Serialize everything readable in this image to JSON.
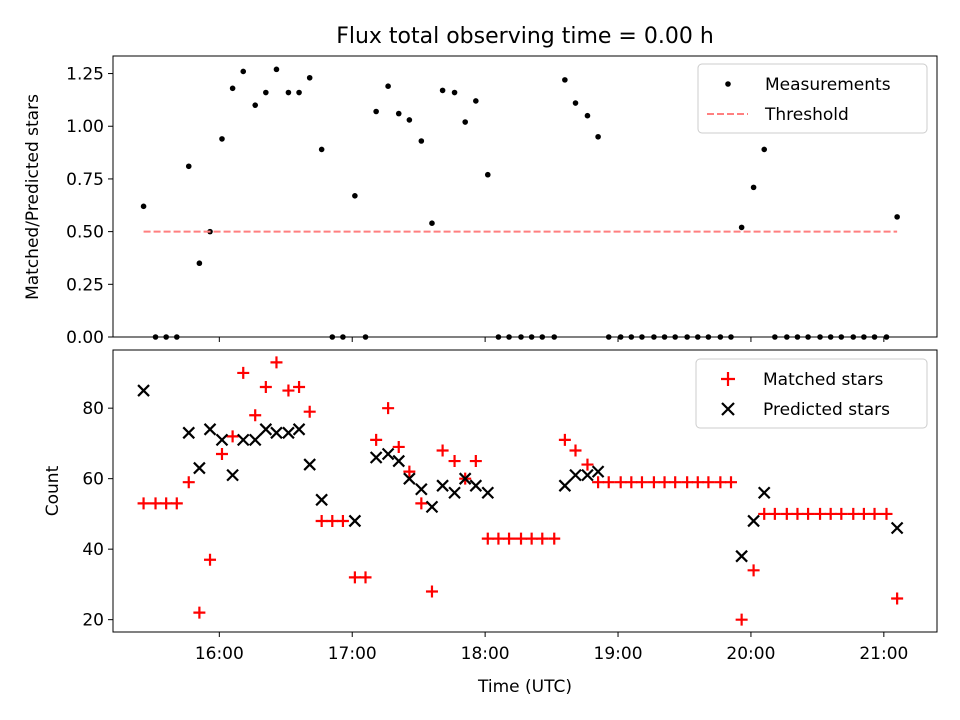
{
  "chart_data": [
    {
      "type": "scatter",
      "title": "Flux total observing time = 0.00 h",
      "xlabel": "",
      "ylabel": "Matched/Predicted stars",
      "xlim": [
        15.2,
        21.4
      ],
      "ylim": [
        0.0,
        1.3333
      ],
      "yticks": [
        0.0,
        0.25,
        0.5,
        0.75,
        1.0,
        1.25
      ],
      "ytick_labels": [
        "0.00",
        "0.25",
        "0.50",
        "0.75",
        "1.00",
        "1.25"
      ],
      "xticks": [
        16,
        17,
        18,
        19,
        20,
        21
      ],
      "xtick_labels": [],
      "legend_position": "top-right",
      "series": [
        {
          "name": "Measurements",
          "marker": "dot",
          "color": "#000000",
          "x": [
            15.43,
            15.52,
            15.6,
            15.68,
            15.77,
            15.85,
            15.93,
            16.02,
            16.1,
            16.18,
            16.27,
            16.35,
            16.43,
            16.52,
            16.6,
            16.68,
            16.77,
            16.85,
            16.93,
            17.02,
            17.1,
            17.18,
            17.27,
            17.35,
            17.43,
            17.52,
            17.6,
            17.68,
            17.77,
            17.85,
            17.93,
            18.02,
            18.1,
            18.18,
            18.27,
            18.35,
            18.43,
            18.52,
            18.6,
            18.68,
            18.77,
            18.85,
            18.93,
            19.02,
            19.1,
            19.18,
            19.27,
            19.35,
            19.43,
            19.52,
            19.6,
            19.68,
            19.77,
            19.85,
            19.93,
            20.02,
            20.1,
            20.18,
            20.27,
            20.35,
            20.43,
            20.52,
            20.6,
            20.68,
            20.77,
            20.85,
            20.93,
            21.02,
            21.1
          ],
          "y": [
            0.62,
            0.0,
            0.0,
            0.0,
            0.81,
            0.35,
            0.5,
            0.94,
            1.18,
            1.26,
            1.1,
            1.16,
            1.27,
            1.16,
            1.16,
            1.23,
            0.89,
            0.0,
            0.0,
            0.67,
            0.0,
            1.07,
            1.19,
            1.06,
            1.03,
            0.93,
            0.54,
            1.17,
            1.16,
            1.02,
            1.12,
            0.77,
            0.0,
            0.0,
            0.0,
            0.0,
            0.0,
            0.0,
            1.22,
            1.11,
            1.05,
            0.95,
            0.0,
            0.0,
            0.0,
            0.0,
            0.0,
            0.0,
            0.0,
            0.0,
            0.0,
            0.0,
            0.0,
            0.0,
            0.52,
            0.71,
            0.89,
            0.0,
            0.0,
            0.0,
            0.0,
            0.0,
            0.0,
            0.0,
            0.0,
            0.0,
            0.0,
            0.0,
            0.57
          ]
        },
        {
          "name": "Threshold",
          "marker": "dashed-line",
          "color": "#ff7f7f",
          "x": [
            15.43,
            21.1
          ],
          "y": [
            0.5,
            0.5
          ]
        }
      ]
    },
    {
      "type": "scatter",
      "title": "",
      "xlabel": "Time (UTC)",
      "ylabel": "Count",
      "xlim": [
        15.2,
        21.4
      ],
      "ylim": [
        16.5,
        96.5
      ],
      "yticks": [
        20,
        40,
        60,
        80
      ],
      "ytick_labels": [
        "20",
        "40",
        "60",
        "80"
      ],
      "xticks": [
        16,
        17,
        18,
        19,
        20,
        21
      ],
      "xtick_labels": [
        "16:00",
        "17:00",
        "18:00",
        "19:00",
        "20:00",
        "21:00"
      ],
      "legend_position": "top-right",
      "series": [
        {
          "name": "Matched stars",
          "marker": "plus",
          "color": "#ff0000",
          "x": [
            15.43,
            15.52,
            15.6,
            15.68,
            15.77,
            15.85,
            15.93,
            16.02,
            16.1,
            16.18,
            16.27,
            16.35,
            16.43,
            16.52,
            16.6,
            16.68,
            16.77,
            16.85,
            16.93,
            17.02,
            17.1,
            17.18,
            17.27,
            17.35,
            17.43,
            17.52,
            17.6,
            17.68,
            17.77,
            17.85,
            17.93,
            18.02,
            18.1,
            18.18,
            18.27,
            18.35,
            18.43,
            18.52,
            18.6,
            18.68,
            18.77,
            18.85,
            18.93,
            19.02,
            19.1,
            19.18,
            19.27,
            19.35,
            19.43,
            19.52,
            19.6,
            19.68,
            19.77,
            19.85,
            19.93,
            20.02,
            20.1,
            20.18,
            20.27,
            20.35,
            20.43,
            20.52,
            20.6,
            20.68,
            20.77,
            20.85,
            20.93,
            21.02,
            21.1
          ],
          "y": [
            53,
            53,
            53,
            53,
            59,
            22,
            37,
            67,
            72,
            90,
            78,
            86,
            93,
            85,
            86,
            79,
            48,
            48,
            48,
            32,
            32,
            71,
            80,
            69,
            62,
            53,
            28,
            68,
            65,
            60,
            65,
            43,
            43,
            43,
            43,
            43,
            43,
            43,
            71,
            68,
            64,
            59,
            59,
            59,
            59,
            59,
            59,
            59,
            59,
            59,
            59,
            59,
            59,
            59,
            20,
            34,
            50,
            50,
            50,
            50,
            50,
            50,
            50,
            50,
            50,
            50,
            50,
            50,
            26
          ]
        },
        {
          "name": "Predicted stars",
          "marker": "x",
          "color": "#000000",
          "x": [
            15.43,
            15.77,
            15.85,
            15.93,
            16.02,
            16.1,
            16.18,
            16.27,
            16.35,
            16.43,
            16.52,
            16.6,
            16.68,
            16.77,
            17.02,
            17.18,
            17.27,
            17.35,
            17.43,
            17.52,
            17.6,
            17.68,
            17.77,
            17.85,
            17.93,
            18.02,
            18.6,
            18.68,
            18.77,
            18.85,
            19.93,
            20.02,
            20.1,
            21.1
          ],
          "y": [
            85,
            73,
            63,
            74,
            71,
            61,
            71,
            71,
            74,
            73,
            73,
            74,
            64,
            54,
            48,
            66,
            67,
            65,
            60,
            57,
            52,
            58,
            56,
            60,
            58,
            56,
            58,
            61,
            61,
            62,
            38,
            48,
            56,
            46
          ]
        }
      ]
    }
  ]
}
